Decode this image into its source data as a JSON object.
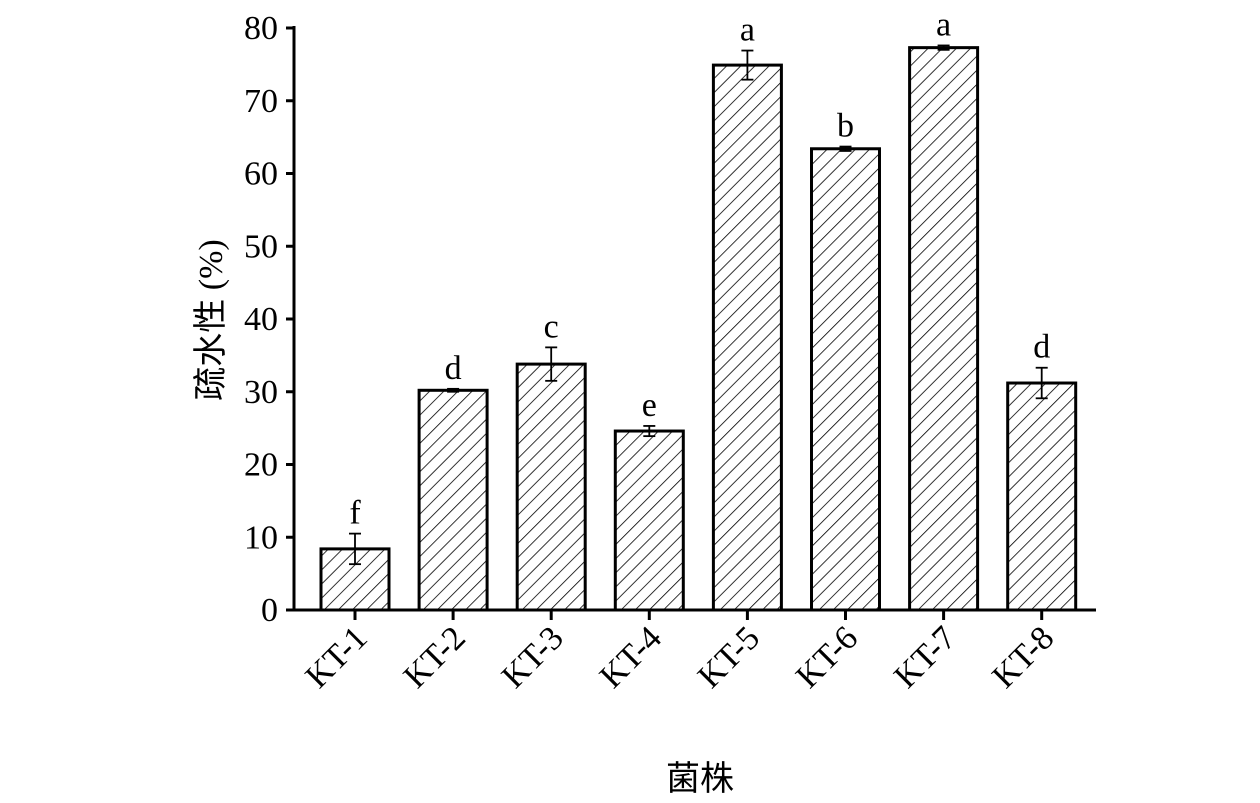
{
  "chart_data": {
    "type": "bar",
    "title": "",
    "xlabel": "菌株",
    "ylabel": "疏水性 (%)",
    "ylim": [
      0,
      80
    ],
    "yticks": [
      0,
      10,
      20,
      30,
      40,
      50,
      60,
      70,
      80
    ],
    "grid": false,
    "categories": [
      "KT-1",
      "KT-2",
      "KT-3",
      "KT-4",
      "KT-5",
      "KT-6",
      "KT-7",
      "KT-8"
    ],
    "values": [
      8.4,
      30.2,
      33.8,
      24.6,
      74.9,
      63.4,
      77.3,
      31.2
    ],
    "errors": [
      2.1,
      0.2,
      2.3,
      0.7,
      2.0,
      0.3,
      0.3,
      2.1
    ],
    "significance_letters": [
      "f",
      "d",
      "c",
      "e",
      "a",
      "b",
      "a",
      "d"
    ],
    "bar_fill": "diagonal-hatch",
    "colors": {
      "bar_stroke": "#000000",
      "bar_fill": "#ffffff"
    }
  }
}
